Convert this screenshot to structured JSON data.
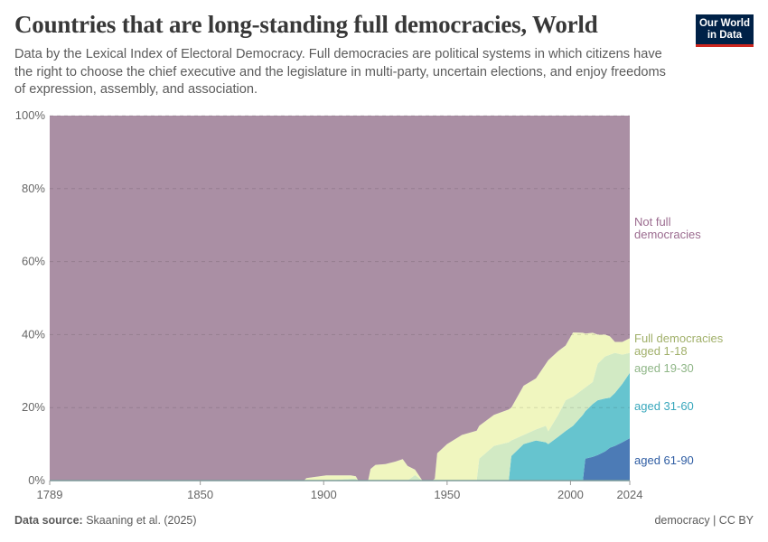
{
  "title": "Countries that are long-standing full democracies, World",
  "subtitle": "Data by the Lexical Index of Electoral Democracy. Full democracies are political systems in which citizens have the right to choose the chief executive and the legislature in multi-party, uncertain elections, and enjoy freedoms of expression, assembly, and association.",
  "logo": "Our World in Data",
  "footer": {
    "source_label": "Data source:",
    "source": "Skaaning et al. (2025)",
    "license": "democracy | CC BY"
  },
  "chart_data": {
    "type": "area",
    "stacked": true,
    "xlim": [
      1789,
      2024
    ],
    "ylim": [
      0,
      100
    ],
    "x_ticks": [
      "1789",
      "1850",
      "1900",
      "1950",
      "2000",
      "2024"
    ],
    "y_ticks": [
      "0%",
      "20%",
      "40%",
      "60%",
      "80%",
      "100%"
    ],
    "grid": "horizontal dashed",
    "legend": "right, inline labels",
    "x": [
      1789,
      1892,
      1893,
      1901,
      1911,
      1913,
      1914,
      1918,
      1919,
      1921,
      1925,
      1929,
      1932,
      1934,
      1937,
      1939,
      1940,
      1944,
      1945,
      1946,
      1950,
      1956,
      1962,
      1963,
      1969,
      1975,
      1976,
      1981,
      1986,
      1990,
      1991,
      1995,
      1998,
      2001,
      2005,
      2006,
      2009,
      2011,
      2014,
      2016,
      2018,
      2021,
      2024
    ],
    "series": [
      {
        "name": "aged 61-90",
        "color": "#4c7bb6",
        "label_color": "#2f5da3",
        "values": [
          0,
          0,
          0,
          0,
          0,
          0,
          0,
          0,
          0,
          0,
          0,
          0,
          0,
          0,
          0,
          0,
          0,
          0,
          0,
          0,
          0,
          0,
          0,
          0,
          0,
          0,
          0,
          0,
          0,
          0,
          0,
          0,
          0,
          0,
          0,
          6,
          6.5,
          7,
          8,
          9,
          9.5,
          10.5,
          11.6
        ]
      },
      {
        "name": "aged 31-60",
        "color": "#66c4cf",
        "label_color": "#38a7bc",
        "values": [
          0,
          0,
          0,
          0,
          0,
          0,
          0,
          0,
          0,
          0,
          0,
          0,
          0,
          0,
          0,
          0,
          0,
          0,
          0,
          0,
          0,
          0,
          0,
          0,
          0,
          0,
          6.7,
          10,
          11,
          10.5,
          10,
          12,
          13.6,
          15,
          18,
          13,
          14.5,
          15,
          14.5,
          13.7,
          14.5,
          16,
          17.9
        ]
      },
      {
        "name": "aged 19-30",
        "color": "#d2eac4",
        "label_color": "#8fb687",
        "values": [
          0,
          0,
          0,
          0,
          0.5,
          0.5,
          0,
          0,
          0,
          0,
          0,
          0,
          0,
          0,
          1.5,
          0.5,
          0,
          0,
          0,
          0,
          0,
          0,
          0,
          6,
          9.5,
          10.5,
          4.3,
          2.5,
          3,
          4.5,
          3.5,
          6,
          8.4,
          8,
          7,
          6.5,
          6,
          10,
          11.5,
          11.8,
          11,
          8,
          5.5
        ]
      },
      {
        "name": "aged 1-18",
        "group_label": "Full democracies",
        "color": "#f0f6bf",
        "label_color": "#a1b06a",
        "values": [
          0,
          0,
          0.7,
          1.4,
          0.9,
          0.7,
          0,
          0,
          3.2,
          4.3,
          4.5,
          5.2,
          5.9,
          4,
          1.5,
          0.5,
          0,
          0,
          0.5,
          7.5,
          10,
          12.5,
          13.7,
          9,
          8.5,
          9,
          9,
          13.5,
          14,
          17,
          19.5,
          17.5,
          15,
          17.6,
          15.5,
          14.8,
          13.5,
          8,
          6,
          5,
          3,
          3.5,
          4
        ]
      },
      {
        "name": "Not full democracies",
        "color": "#aa8fa4",
        "label_color": "#9b6b8f",
        "values": [
          100,
          100,
          99.3,
          98.6,
          98.6,
          98.8,
          100,
          100,
          96.8,
          95.7,
          95.5,
          94.8,
          94.1,
          96,
          97,
          99,
          100,
          100,
          99.5,
          92.5,
          90,
          87.5,
          86.3,
          85,
          82,
          80.5,
          80,
          74,
          72,
          68,
          67,
          64.5,
          63,
          59.4,
          59.5,
          59.7,
          59.5,
          60,
          60,
          60.5,
          62,
          62,
          61
        ]
      }
    ]
  }
}
